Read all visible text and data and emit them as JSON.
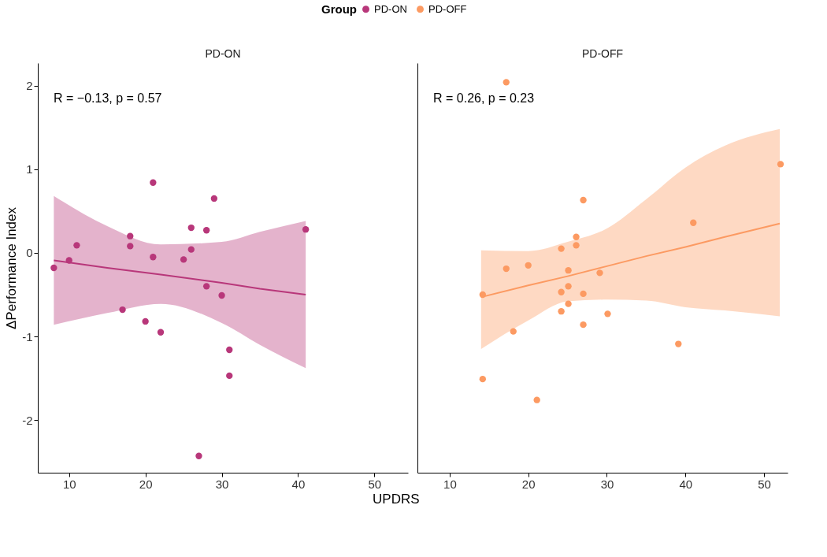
{
  "chart_data": [
    {
      "type": "scatter",
      "title": "PD-ON",
      "ylabel": "ΔPerformance Index",
      "xlabel": "UPDRS",
      "legend_title": "Group",
      "legend": "top",
      "xlim": [
        5.9,
        54.4
      ],
      "xticks": [
        10,
        20,
        30,
        40,
        50
      ],
      "ylim": [
        -2.63,
        2.27
      ],
      "yticks": [
        -2,
        -1,
        0,
        1,
        2
      ],
      "grid": false,
      "annotations": [
        "R = −0.13, p = 0.57"
      ],
      "series": [
        {
          "name": "PD-ON",
          "color": "#b8377a",
          "marker": "circle",
          "x": [
            8,
            10,
            11,
            17,
            18,
            18,
            20,
            21,
            21,
            22,
            25,
            26,
            26,
            27,
            28,
            28,
            29,
            30,
            31,
            31,
            41
          ],
          "values": [
            -0.18,
            -0.09,
            0.09,
            -0.68,
            0.2,
            0.08,
            -0.82,
            0.84,
            -0.05,
            -0.95,
            -0.08,
            0.3,
            0.04,
            -2.43,
            0.27,
            -0.4,
            0.65,
            -0.51,
            -1.16,
            -1.47,
            0.28
          ]
        },
        {
          "type": "line",
          "color": "#b8377a",
          "line_style": "solid",
          "x": [
            8,
            15,
            22,
            30,
            35,
            41
          ],
          "values": [
            -0.09,
            -0.18,
            -0.26,
            -0.36,
            -0.43,
            -0.5
          ],
          "lower": [
            -0.86,
            -0.72,
            -0.61,
            -0.84,
            -1.1,
            -1.38
          ],
          "upper": [
            0.68,
            0.32,
            0.1,
            0.13,
            0.25,
            0.38
          ]
        }
      ]
    },
    {
      "type": "scatter",
      "title": "PD-OFF",
      "xlim": [
        5.9,
        53.0
      ],
      "xticks": [
        10,
        20,
        30,
        40,
        50
      ],
      "ylim": [
        -2.63,
        2.27
      ],
      "tick_labels": "x",
      "grid": false,
      "annotations": [
        "R = 0.26, p = 0.23"
      ],
      "series": [
        {
          "name": "PD-OFF",
          "color": "#fc9a62",
          "marker": "circle",
          "x": [
            17.2,
            14.2,
            14.2,
            17.2,
            18.1,
            20.0,
            21.1,
            24.2,
            24.2,
            24.2,
            25.1,
            25.1,
            25.1,
            26.1,
            26.1,
            27.0,
            27.0,
            27.0,
            29.1,
            30.1,
            39.1,
            41.0,
            52.1
          ],
          "values": [
            2.04,
            -0.5,
            -1.51,
            -0.19,
            -0.94,
            -0.15,
            -1.76,
            0.05,
            -0.47,
            -0.7,
            -0.21,
            -0.4,
            -0.61,
            0.19,
            0.09,
            0.63,
            -0.49,
            -0.86,
            -0.24,
            -0.73,
            -1.09,
            0.36,
            1.06
          ]
        },
        {
          "type": "line",
          "color": "#fc9a62",
          "line_style": "solid",
          "x": [
            14,
            20,
            25,
            30,
            35,
            40,
            45,
            52
          ],
          "values": [
            -0.53,
            -0.39,
            -0.28,
            -0.16,
            -0.04,
            0.07,
            0.19,
            0.35
          ],
          "lower": [
            -1.15,
            -0.81,
            -0.58,
            -0.56,
            -0.57,
            -0.65,
            -0.69,
            -0.76
          ],
          "upper": [
            0.03,
            0.02,
            0.13,
            0.29,
            0.64,
            1.02,
            1.28,
            1.48
          ]
        }
      ]
    }
  ]
}
